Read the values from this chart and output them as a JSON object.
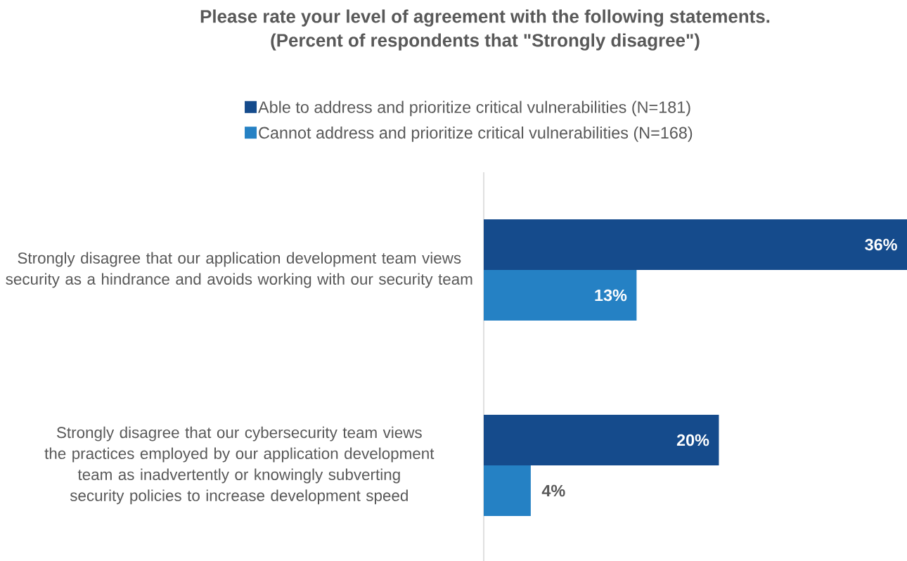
{
  "chart_data": {
    "type": "bar",
    "orientation": "horizontal",
    "title": "Please rate your level of agreement with the following statements.",
    "subtitle": "(Percent of respondents that \"Strongly disagree\")",
    "categories": [
      "Strongly disagree that our application development team views security as a hindrance and avoids working with our security team",
      "Strongly disagree that our cybersecurity team views the practices employed by our application development team as inadvertently or knowingly subverting security policies to increase development speed"
    ],
    "series": [
      {
        "name": "Able to address and prioritize critical vulnerabilities (N=181)",
        "color": "#154b8c",
        "values": [
          36,
          20
        ],
        "value_labels": [
          "36%",
          "20%"
        ]
      },
      {
        "name": "Cannot address and prioritize critical vulnerabilities (N=168)",
        "color": "#2581c4",
        "values": [
          13,
          4
        ],
        "value_labels": [
          "13%",
          "4%"
        ]
      }
    ],
    "legend": "top"
  }
}
